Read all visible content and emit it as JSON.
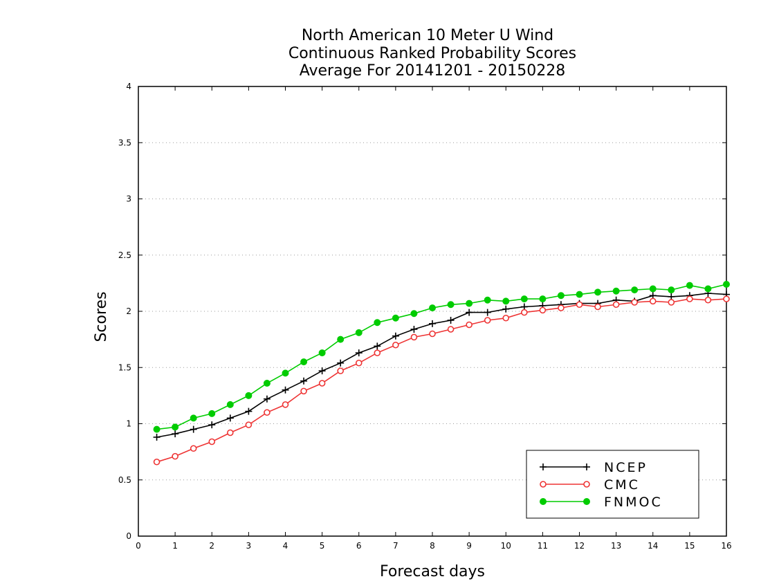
{
  "chart_data": {
    "type": "line",
    "title_lines": [
      "North American 10 Meter U Wind",
      "Continuous Ranked Probability Scores",
      "Average For 20141201 - 20150228"
    ],
    "xlabel": "Forecast days",
    "ylabel": "Scores",
    "xlim": [
      0,
      16
    ],
    "ylim": [
      0,
      4
    ],
    "x_ticks": [
      "0",
      "1",
      "2",
      "3",
      "4",
      "5",
      "6",
      "7",
      "8",
      "9",
      "10",
      "11",
      "12",
      "13",
      "14",
      "15",
      "16"
    ],
    "y_ticks": [
      "0",
      "0.5",
      "1",
      "1.5",
      "2",
      "2.5",
      "3",
      "3.5",
      "4"
    ],
    "grid": "horizontal dotted",
    "legend_position": "bottom-right",
    "x": [
      0.5,
      1,
      1.5,
      2,
      2.5,
      3,
      3.5,
      4,
      4.5,
      5,
      5.5,
      6,
      6.5,
      7,
      7.5,
      8,
      8.5,
      9,
      9.5,
      10,
      10.5,
      11,
      11.5,
      12,
      12.5,
      13,
      13.5,
      14,
      14.5,
      15,
      15.5,
      16
    ],
    "series": [
      {
        "name": "NCEP",
        "color": "#000000",
        "marker": "plus",
        "values": [
          0.88,
          0.91,
          0.95,
          0.99,
          1.05,
          1.11,
          1.22,
          1.3,
          1.38,
          1.47,
          1.54,
          1.63,
          1.69,
          1.78,
          1.84,
          1.89,
          1.92,
          1.99,
          1.99,
          2.02,
          2.04,
          2.05,
          2.06,
          2.07,
          2.07,
          2.1,
          2.09,
          2.14,
          2.13,
          2.14,
          2.16,
          2.15
        ]
      },
      {
        "name": "CMC",
        "color": "#ee3333",
        "marker": "open-circle",
        "values": [
          0.66,
          0.71,
          0.78,
          0.84,
          0.92,
          0.99,
          1.1,
          1.17,
          1.29,
          1.36,
          1.47,
          1.54,
          1.63,
          1.7,
          1.77,
          1.8,
          1.84,
          1.88,
          1.92,
          1.94,
          1.99,
          2.01,
          2.03,
          2.06,
          2.04,
          2.06,
          2.08,
          2.09,
          2.08,
          2.11,
          2.1,
          2.11
        ]
      },
      {
        "name": "FNMOC",
        "color": "#00cc00",
        "marker": "filled-circle",
        "values": [
          0.95,
          0.97,
          1.05,
          1.09,
          1.17,
          1.25,
          1.36,
          1.45,
          1.55,
          1.63,
          1.75,
          1.81,
          1.9,
          1.94,
          1.98,
          2.03,
          2.06,
          2.07,
          2.1,
          2.09,
          2.11,
          2.11,
          2.14,
          2.15,
          2.17,
          2.18,
          2.19,
          2.2,
          2.19,
          2.23,
          2.2,
          2.24
        ]
      }
    ]
  }
}
